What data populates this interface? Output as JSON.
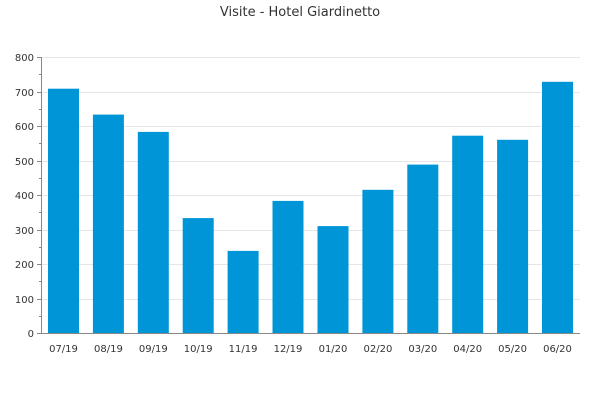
{
  "chart_data": {
    "type": "bar",
    "title": "Visite - Hotel Giardinetto",
    "xlabel": "",
    "ylabel": "",
    "categories": [
      "07/19",
      "08/19",
      "09/19",
      "10/19",
      "11/19",
      "12/19",
      "01/20",
      "02/20",
      "03/20",
      "04/20",
      "05/20",
      "06/20"
    ],
    "values": [
      708,
      633,
      583,
      333,
      238,
      383,
      310,
      415,
      488,
      572,
      560,
      728
    ],
    "ylim": [
      0,
      800
    ],
    "yticks": [
      0,
      100,
      200,
      300,
      400,
      500,
      600,
      700,
      800
    ],
    "grid": true,
    "legend": "none",
    "bar_color": "#0095d6",
    "grid_color": "#e6e6e6",
    "axis_color": "#888888"
  }
}
